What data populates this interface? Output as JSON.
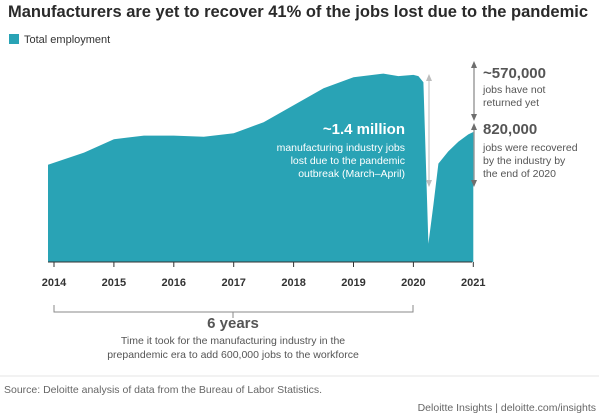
{
  "chart_data": {
    "type": "area",
    "title": "Manufacturers are yet to recover 41% of the jobs lost due to the pandemic",
    "legend": {
      "label": "Total employment",
      "placement": "top-left"
    },
    "color": "#29a3b5",
    "x_ticks": [
      "2014",
      "2015",
      "2016",
      "2017",
      "2018",
      "2019",
      "2020",
      "2021"
    ],
    "x_range": [
      "2014-01",
      "2021-02"
    ],
    "y_range_thousands": [
      0,
      13000
    ],
    "series": [
      {
        "points": [
          [
            "2014-01",
            12090
          ],
          [
            "2014-07",
            12190
          ],
          [
            "2015-01",
            12300
          ],
          [
            "2015-07",
            12330
          ],
          [
            "2016-01",
            12330
          ],
          [
            "2016-07",
            12320
          ],
          [
            "2017-01",
            12350
          ],
          [
            "2017-07",
            12440
          ],
          [
            "2018-01",
            12580
          ],
          [
            "2018-07",
            12720
          ],
          [
            "2019-01",
            12810
          ],
          [
            "2019-07",
            12840
          ],
          [
            "2019-10",
            12820
          ],
          [
            "2020-01",
            12830
          ],
          [
            "2020-02",
            12820
          ],
          [
            "2020-03",
            12770
          ],
          [
            "2020-04",
            11440
          ],
          [
            "2020-05",
            11760
          ],
          [
            "2020-06",
            12100
          ],
          [
            "2020-08",
            12200
          ],
          [
            "2020-10",
            12280
          ],
          [
            "2020-12",
            12340
          ],
          [
            "2021-01",
            12360
          ]
        ]
      }
    ],
    "annotations": {
      "loss": {
        "value": "~1.4 million",
        "lines": [
          "manufacturing industry jobs",
          "lost due to the pandemic",
          "outbreak (March–April)"
        ]
      },
      "not_returned": {
        "value": "~570,000",
        "lines": [
          "jobs have not",
          "returned yet"
        ]
      },
      "recovered": {
        "value": "820,000",
        "lines": [
          "jobs were recovered",
          "by the industry by",
          "the end of 2020"
        ]
      },
      "period": {
        "value": "6 years",
        "lines": [
          "Time it took for the manufacturing industry in the",
          "prepandemic era to add 600,000 jobs to the workforce"
        ]
      }
    }
  },
  "footer": {
    "source": "Source: Deloitte analysis of data from the Bureau of Labor Statistics.",
    "brand": "Deloitte Insights | deloitte.com/insights"
  }
}
